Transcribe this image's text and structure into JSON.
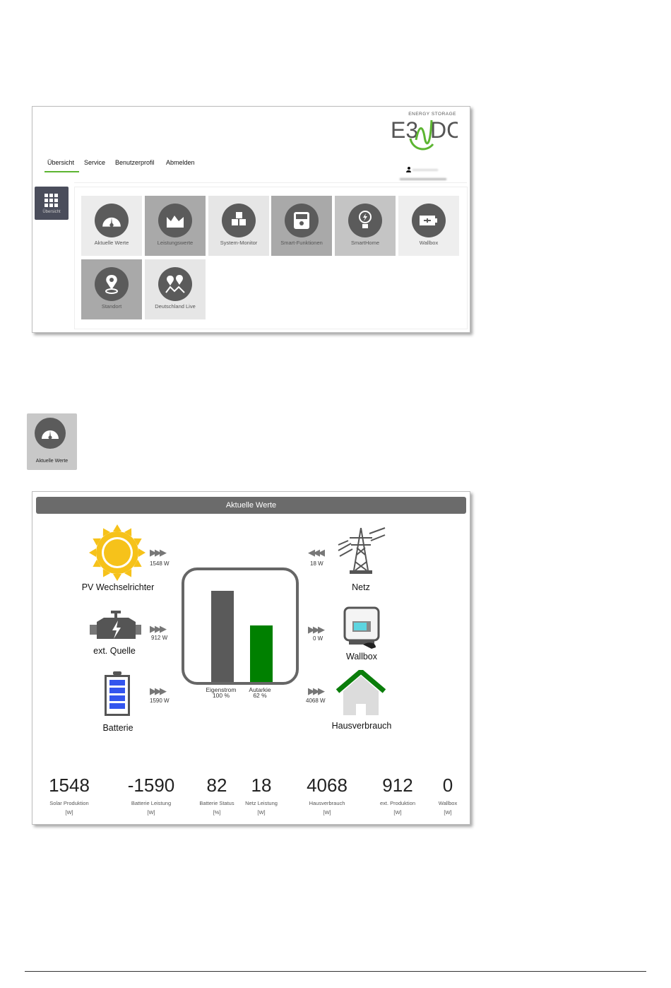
{
  "portal": {
    "logo": {
      "tagline": "ENERGY STORAGE",
      "brand": "E3/DC"
    },
    "nav": [
      {
        "label": "Übersicht",
        "active": true
      },
      {
        "label": "Service"
      },
      {
        "label": "Benutzerprofil"
      },
      {
        "label": "Abmelden"
      }
    ],
    "sidebar_button": {
      "label": "Übersicht",
      "icon": "grid-icon"
    },
    "tiles": [
      {
        "label": "Aktuelle Werte",
        "icon": "gauge-icon",
        "bg": "#ececec"
      },
      {
        "label": "Leistungswerte",
        "icon": "chart-icon",
        "bg": "#a9a9a9"
      },
      {
        "label": "System-Monitor",
        "icon": "cubes-icon",
        "bg": "#e6e6e6"
      },
      {
        "label": "Smart-Funktionen",
        "icon": "device-icon",
        "bg": "#a9a9a9"
      },
      {
        "label": "SmartHome",
        "icon": "bulb-icon",
        "bg": "#c4c4c4"
      },
      {
        "label": "Wallbox",
        "icon": "plug-icon",
        "bg": "#eeeeee"
      },
      {
        "label": "Standort",
        "icon": "location-icon",
        "bg": "#a9a9a9"
      },
      {
        "label": "Deutschland Live",
        "icon": "map-icon",
        "bg": "#e6e6e6"
      }
    ],
    "accent": "#5cb531"
  },
  "single_tile": {
    "label": "Aktuelle Werte",
    "icon": "gauge-icon"
  },
  "aktuelle_werte": {
    "title": "Aktuelle Werte",
    "sources": [
      {
        "label": "PV Wechselrichter",
        "flow": "1548 W"
      },
      {
        "label": "ext. Quelle",
        "flow": "912 W"
      },
      {
        "label": "Batterie",
        "flow": "1590 W"
      }
    ],
    "sinks": [
      {
        "label": "Netz",
        "flow": "18 W"
      },
      {
        "label": "Wallbox",
        "flow": "0 W"
      },
      {
        "label": "Hausverbrauch",
        "flow": "4068 W"
      }
    ],
    "bars": [
      {
        "name": "Eigenstrom",
        "value": 100,
        "display": "100 %",
        "color": "#5a5a5a"
      },
      {
        "name": "Autarkie",
        "value": 62,
        "display": "62 %",
        "color": "#008000"
      }
    ],
    "stats": [
      {
        "value": "1548",
        "label": "Solar Produktion",
        "unit": "[W]"
      },
      {
        "value": "-1590",
        "label": "Batterie Leistung",
        "unit": "[W]"
      },
      {
        "value": "82",
        "label": "Batterie Status",
        "unit": "[%]"
      },
      {
        "value": "18",
        "label": "Netz Leistung",
        "unit": "[W]"
      },
      {
        "value": "4068",
        "label": "Hausverbrauch",
        "unit": "[W]"
      },
      {
        "value": "912",
        "label": "ext. Produktion",
        "unit": "[W]"
      },
      {
        "value": "0",
        "label": "Wallbox",
        "unit": "[W]"
      }
    ]
  }
}
